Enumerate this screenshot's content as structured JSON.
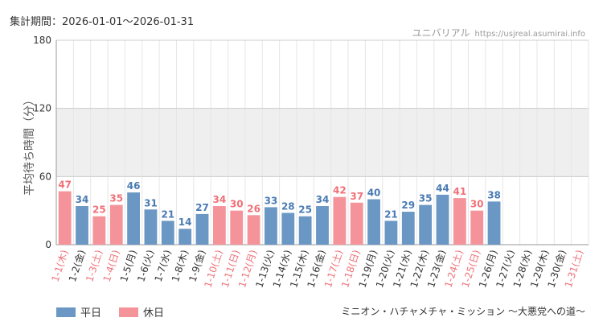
{
  "header": {
    "period": "集計期間：2026-01-01～2026-01-31",
    "site_name": "ユニバリアル",
    "site_url": "https://usjreal.asumirai.info"
  },
  "footer": {
    "attraction": "ミニオン・ハチャメチャ・ミッション ～大悪党への道～"
  },
  "colors": {
    "weekday": "#6b97c4",
    "holiday": "#f5939a",
    "weekday_text": "#4a7bb3",
    "holiday_text": "#f07178",
    "band": "#efefef",
    "grid": "#e6e6e6"
  },
  "chart_data": {
    "type": "bar",
    "ylabel": "平均待ち時間（分）",
    "ylim": [
      0,
      180
    ],
    "yticks": [
      0,
      60,
      120,
      180
    ],
    "shaded_band": [
      60,
      120
    ],
    "legend": [
      {
        "name": "平日",
        "kind": "weekday"
      },
      {
        "name": "休日",
        "kind": "holiday"
      }
    ],
    "categories": [
      "1-1(木)",
      "1-2(金)",
      "1-3(土)",
      "1-4(日)",
      "1-5(月)",
      "1-6(火)",
      "1-7(水)",
      "1-8(木)",
      "1-9(金)",
      "1-10(土)",
      "1-11(日)",
      "1-12(月)",
      "1-13(火)",
      "1-14(水)",
      "1-15(木)",
      "1-16(金)",
      "1-17(土)",
      "1-18(日)",
      "1-19(月)",
      "1-20(火)",
      "1-21(水)",
      "1-22(木)",
      "1-23(金)",
      "1-24(土)",
      "1-25(日)",
      "1-26(月)",
      "1-27(火)",
      "1-28(水)",
      "1-29(木)",
      "1-30(金)",
      "1-31(土)"
    ],
    "day_type": [
      "holiday",
      "weekday",
      "holiday",
      "holiday",
      "weekday",
      "weekday",
      "weekday",
      "weekday",
      "weekday",
      "holiday",
      "holiday",
      "holiday",
      "weekday",
      "weekday",
      "weekday",
      "weekday",
      "holiday",
      "holiday",
      "weekday",
      "weekday",
      "weekday",
      "weekday",
      "weekday",
      "holiday",
      "holiday",
      "weekday",
      "weekday",
      "weekday",
      "weekday",
      "weekday",
      "holiday"
    ],
    "values": [
      47,
      34,
      25,
      35,
      46,
      31,
      21,
      14,
      27,
      34,
      30,
      26,
      33,
      28,
      25,
      34,
      42,
      37,
      40,
      21,
      29,
      35,
      44,
      41,
      30,
      38,
      null,
      null,
      null,
      null,
      null
    ]
  }
}
